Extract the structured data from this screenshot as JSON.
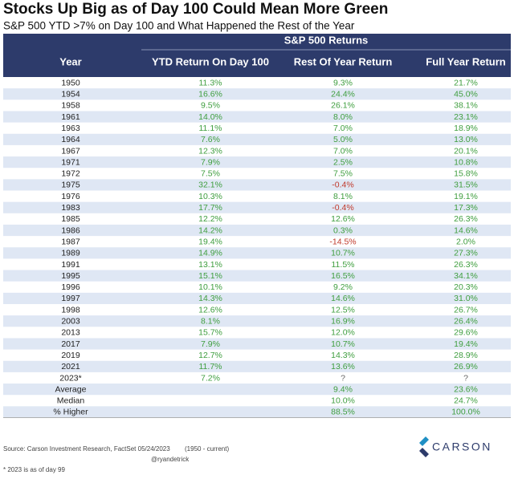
{
  "header": {
    "title": "Stocks Up Big as of Day 100 Could Mean More Green",
    "subtitle": "S&P 500 YTD >7% on Day 100 and What Happened the Rest of the Year"
  },
  "table": {
    "group_header": "S&P 500 Returns",
    "columns": [
      "Year",
      "YTD Return On Day 100",
      "Rest Of Year Return",
      "Full Year Return"
    ],
    "rows": [
      [
        "1950",
        "11.3%",
        "9.3%",
        "21.7%"
      ],
      [
        "1954",
        "16.6%",
        "24.4%",
        "45.0%"
      ],
      [
        "1958",
        "9.5%",
        "26.1%",
        "38.1%"
      ],
      [
        "1961",
        "14.0%",
        "8.0%",
        "23.1%"
      ],
      [
        "1963",
        "11.1%",
        "7.0%",
        "18.9%"
      ],
      [
        "1964",
        "7.6%",
        "5.0%",
        "13.0%"
      ],
      [
        "1967",
        "12.3%",
        "7.0%",
        "20.1%"
      ],
      [
        "1971",
        "7.9%",
        "2.5%",
        "10.8%"
      ],
      [
        "1972",
        "7.5%",
        "7.5%",
        "15.8%"
      ],
      [
        "1975",
        "32.1%",
        "-0.4%",
        "31.5%"
      ],
      [
        "1976",
        "10.3%",
        "8.1%",
        "19.1%"
      ],
      [
        "1983",
        "17.7%",
        "-0.4%",
        "17.3%"
      ],
      [
        "1985",
        "12.2%",
        "12.6%",
        "26.3%"
      ],
      [
        "1986",
        "14.2%",
        "0.3%",
        "14.6%"
      ],
      [
        "1987",
        "19.4%",
        "-14.5%",
        "2.0%"
      ],
      [
        "1989",
        "14.9%",
        "10.7%",
        "27.3%"
      ],
      [
        "1991",
        "13.1%",
        "11.5%",
        "26.3%"
      ],
      [
        "1995",
        "15.1%",
        "16.5%",
        "34.1%"
      ],
      [
        "1996",
        "10.1%",
        "9.2%",
        "20.3%"
      ],
      [
        "1997",
        "14.3%",
        "14.6%",
        "31.0%"
      ],
      [
        "1998",
        "12.6%",
        "12.5%",
        "26.7%"
      ],
      [
        "2003",
        "8.1%",
        "16.9%",
        "26.4%"
      ],
      [
        "2013",
        "15.7%",
        "12.0%",
        "29.6%"
      ],
      [
        "2017",
        "7.9%",
        "10.7%",
        "19.4%"
      ],
      [
        "2019",
        "12.7%",
        "14.3%",
        "28.9%"
      ],
      [
        "2021",
        "11.7%",
        "13.6%",
        "26.9%"
      ],
      [
        "2023*",
        "7.2%",
        "?",
        "?"
      ]
    ],
    "summary": [
      [
        "Average",
        "9.4%",
        "23.6%"
      ],
      [
        "Median",
        "10.0%",
        "24.7%"
      ],
      [
        "% Higher",
        "88.5%",
        "100.0%"
      ]
    ]
  },
  "footer": {
    "source": "Source: Carson Investment Research, FactSet 05/24/2023",
    "range": "(1950 - current)",
    "handle": "@ryandetrick",
    "note": "* 2023 is as of day 99"
  },
  "logo": "CARSON"
}
